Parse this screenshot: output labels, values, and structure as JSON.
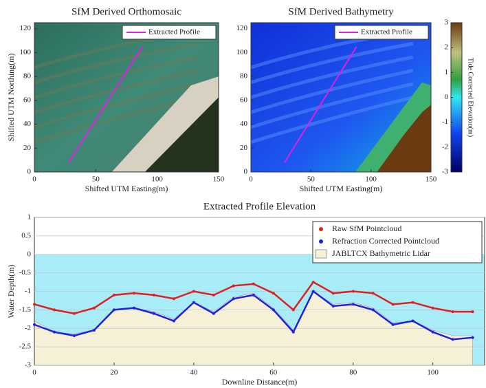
{
  "chart_data": [
    {
      "type": "image",
      "title": "SfM Derived Orthomosaic",
      "xlabel": "Shifted UTM Easting(m)",
      "ylabel": "Shifted UTM Northing(m)",
      "xlim": [
        0,
        150
      ],
      "xticks": [
        0,
        50,
        100,
        150
      ],
      "ylim": [
        0,
        125
      ],
      "yticks": [
        0,
        20,
        40,
        60,
        80,
        100,
        120
      ],
      "series": [
        {
          "name": "Extracted Profile",
          "color": "#e020e0",
          "x": [
            28,
            88
          ],
          "values": [
            8,
            105
          ]
        }
      ]
    },
    {
      "type": "image",
      "title": "SfM Derived Bathymetry",
      "xlabel": "Shifted UTM Easting(m)",
      "xlim": [
        0,
        150
      ],
      "xticks": [
        0,
        50,
        100,
        150
      ],
      "ylim": [
        0,
        125
      ],
      "yticks": [
        0,
        20,
        40,
        60,
        80,
        100,
        120
      ],
      "series": [
        {
          "name": "Extracted Profile",
          "color": "#e020e0",
          "x": [
            28,
            88
          ],
          "values": [
            8,
            105
          ]
        }
      ],
      "colorbar_label": "Tide Corrected Elevation(m)",
      "clim": [
        -3,
        3
      ],
      "cticks": [
        -3,
        -2,
        -1,
        0,
        1,
        2,
        3
      ]
    },
    {
      "type": "profile",
      "title": "Extracted Profile Elevation",
      "xlabel": "Downline Distance(m)",
      "ylabel": "Water Depth(m)",
      "xlim": [
        0,
        113
      ],
      "xticks": [
        0,
        20,
        40,
        60,
        80,
        100
      ],
      "ylim": [
        -3,
        1
      ],
      "yticks": [
        -3,
        -2.5,
        -2,
        -1.5,
        -1,
        -0.5,
        0,
        0.5,
        1
      ],
      "grid": true,
      "x": [
        0,
        5,
        10,
        15,
        20,
        25,
        30,
        35,
        40,
        45,
        50,
        55,
        60,
        65,
        70,
        75,
        80,
        85,
        90,
        95,
        100,
        105,
        110
      ],
      "series": [
        {
          "name": "Raw SfM Pointcloud",
          "color": "#e02020",
          "values": [
            -1.35,
            -1.5,
            -1.6,
            -1.45,
            -1.1,
            -1.05,
            -1.1,
            -1.2,
            -1.0,
            -1.1,
            -0.85,
            -0.8,
            -1.05,
            -1.5,
            -0.75,
            -1.05,
            -1.0,
            -1.05,
            -1.35,
            -1.3,
            -1.45,
            -1.55,
            -1.55
          ]
        },
        {
          "name": "Refraction Corrected Pointcloud",
          "color": "#2020e0",
          "values": [
            -1.9,
            -2.1,
            -2.2,
            -2.05,
            -1.5,
            -1.45,
            -1.6,
            -1.8,
            -1.3,
            -1.6,
            -1.2,
            -1.1,
            -1.5,
            -2.1,
            -1.0,
            -1.4,
            -1.35,
            -1.5,
            -1.9,
            -1.8,
            -2.1,
            -2.3,
            -2.25
          ]
        },
        {
          "name": "JABLTCX Bathymetric Lidar",
          "color": "#f5f0d6",
          "values": [
            -1.8,
            -2.1,
            -2.15,
            -2.05,
            -1.5,
            -1.45,
            -1.55,
            -1.75,
            -1.3,
            -1.55,
            -1.15,
            -1.05,
            -1.45,
            -2.05,
            -1.0,
            -1.35,
            -1.3,
            -1.45,
            -1.85,
            -1.8,
            -2.05,
            -2.2,
            -2.2
          ]
        }
      ]
    }
  ]
}
